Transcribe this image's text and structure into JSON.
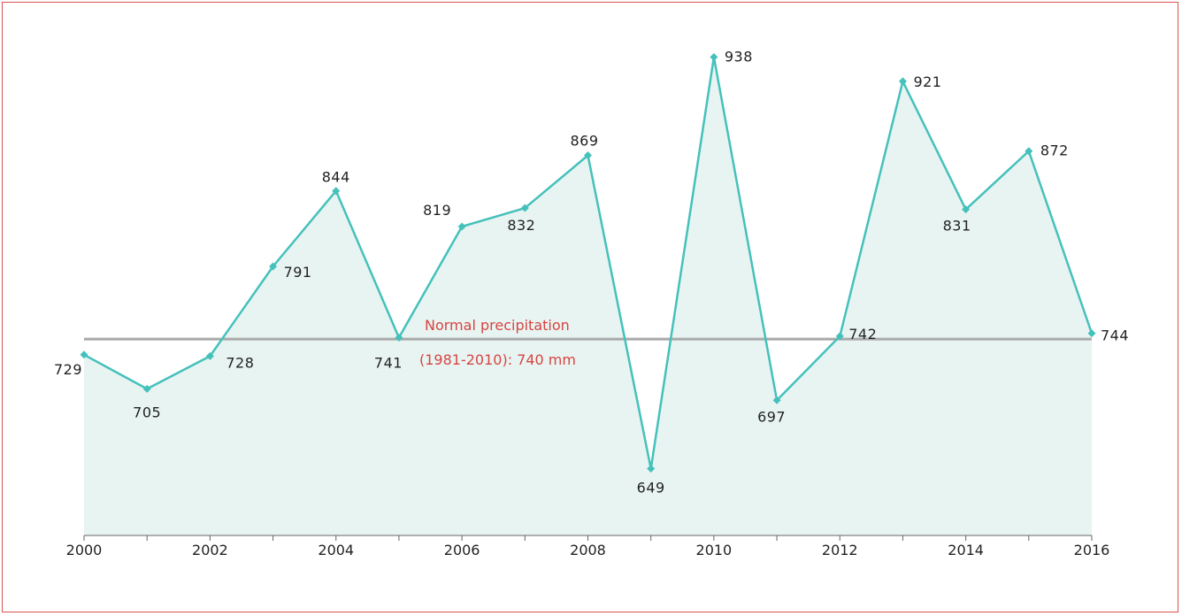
{
  "chart_data": {
    "type": "line",
    "title": "",
    "xlabel": "",
    "ylabel": "",
    "x": [
      2000,
      2001,
      2002,
      2003,
      2004,
      2005,
      2006,
      2007,
      2008,
      2009,
      2010,
      2011,
      2012,
      2013,
      2014,
      2015,
      2016
    ],
    "values": [
      729,
      705,
      728,
      791,
      844,
      741,
      819,
      832,
      869,
      649,
      938,
      697,
      742,
      921,
      831,
      872,
      744
    ],
    "x_tick_labels": [
      "2000",
      "2002",
      "2004",
      "2006",
      "2008",
      "2010",
      "2012",
      "2014",
      "2016"
    ],
    "ylim": [
      600,
      950
    ],
    "grid": false,
    "reference_line": {
      "value": 740,
      "label_line1": "Normal precipitation",
      "label_line2": "(1981-2010): 740 mm"
    },
    "colors": {
      "line": "#45c1bb",
      "area": "#e8f4f2",
      "reference": "#a9a9a9",
      "reference_text": "#d64541",
      "frame": "#d9534f"
    }
  }
}
